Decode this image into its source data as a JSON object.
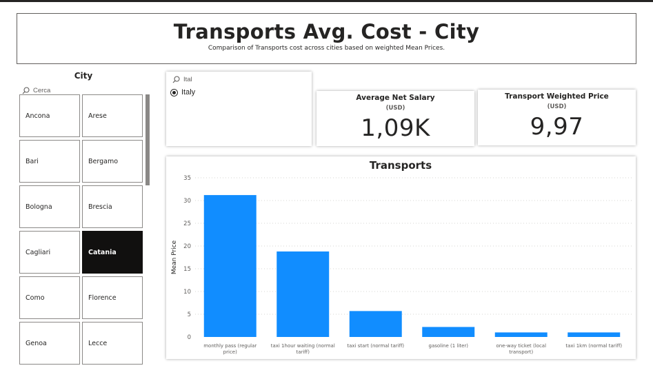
{
  "header": {
    "title": "Transports Avg. Cost - City",
    "subtitle": "Comparison of Transports cost across cities based on weighted Mean Prices."
  },
  "city_slicer": {
    "title": "City",
    "search_placeholder": "Cerca",
    "items": [
      {
        "label": "Ancona",
        "selected": false
      },
      {
        "label": "Arese",
        "selected": false
      },
      {
        "label": "Bari",
        "selected": false
      },
      {
        "label": "Bergamo",
        "selected": false
      },
      {
        "label": "Bologna",
        "selected": false
      },
      {
        "label": "Brescia",
        "selected": false
      },
      {
        "label": "Cagliari",
        "selected": false
      },
      {
        "label": "Catania",
        "selected": true
      },
      {
        "label": "Como",
        "selected": false
      },
      {
        "label": "Florence",
        "selected": false
      },
      {
        "label": "Genoa",
        "selected": false
      },
      {
        "label": "Lecce",
        "selected": false
      }
    ]
  },
  "country_slicer": {
    "search_value": "Ital",
    "option": "Italy",
    "option_selected": true
  },
  "kpi_salary": {
    "title": "Average Net Salary",
    "unit": "(USD)",
    "value": "1,09K"
  },
  "kpi_transport": {
    "title": "Transport Weighted Price",
    "unit": "(USD)",
    "value": "9,97"
  },
  "colors": {
    "bar": "#118dff",
    "selected_tile": "#11100f"
  },
  "chart_data": {
    "type": "bar",
    "title": "Transports",
    "xlabel": "",
    "ylabel": "Mean Price",
    "ylim": [
      0,
      35
    ],
    "yticks": [
      0,
      5,
      10,
      15,
      20,
      25,
      30,
      35
    ],
    "grid": true,
    "categories": [
      [
        "monthly pass (regular",
        "price)"
      ],
      [
        "taxi 1hour waiting (normal",
        "tariff)"
      ],
      [
        "taxi start (normal tariff)"
      ],
      [
        "gasoline (1 liter)"
      ],
      [
        "one-way ticket (local",
        "transport)"
      ],
      [
        "taxi 1km (normal tariff)"
      ]
    ],
    "values": [
      31.2,
      18.8,
      5.7,
      2.2,
      1.0,
      1.0
    ]
  }
}
